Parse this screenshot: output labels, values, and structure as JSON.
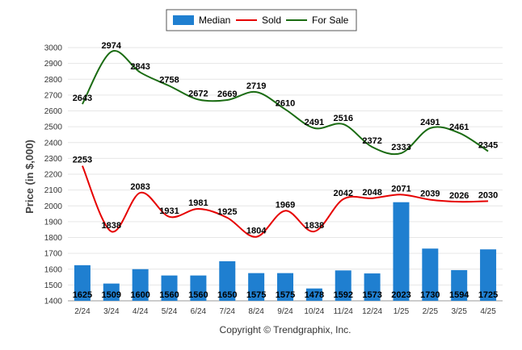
{
  "chart_data": {
    "type": "bar",
    "categories": [
      "2/24",
      "3/24",
      "4/24",
      "5/24",
      "6/24",
      "7/24",
      "8/24",
      "9/24",
      "10/24",
      "11/24",
      "12/24",
      "1/25",
      "2/25",
      "3/25",
      "4/25"
    ],
    "series": [
      {
        "name": "Median",
        "kind": "bar",
        "color": "#1f7fd0",
        "values": [
          1625,
          1509,
          1600,
          1560,
          1560,
          1650,
          1575,
          1575,
          1478,
          1592,
          1573,
          2023,
          1730,
          1594,
          1725
        ]
      },
      {
        "name": "Sold",
        "kind": "line",
        "color": "#e60000",
        "values": [
          2253,
          1838,
          2083,
          1931,
          1981,
          1925,
          1804,
          1969,
          1838,
          2042,
          2048,
          2071,
          2039,
          2026,
          2030
        ]
      },
      {
        "name": "For Sale",
        "kind": "line",
        "color": "#1a6b12",
        "values": [
          2643,
          2974,
          2843,
          2758,
          2672,
          2669,
          2719,
          2610,
          2491,
          2516,
          2372,
          2333,
          2491,
          2461,
          2345
        ]
      }
    ],
    "ylabel": "Price (in $,000)",
    "ylim": [
      1400,
      3000
    ],
    "yticks": [
      1400,
      1500,
      1600,
      1700,
      1800,
      1900,
      2000,
      2100,
      2200,
      2300,
      2400,
      2500,
      2600,
      2700,
      2800,
      2900,
      3000
    ],
    "grid": true,
    "legend_position": "top-center"
  },
  "footer": {
    "copyright": "Copyright © Trendgraphix, Inc."
  }
}
